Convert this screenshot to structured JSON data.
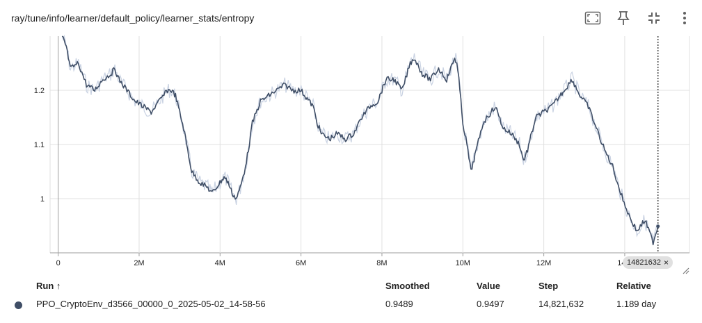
{
  "card": {
    "title": "ray/tune/info/learner/default_policy/learner_stats/entropy"
  },
  "toolbar": {
    "icons": [
      "fullscreen-icon",
      "pin-icon",
      "collapse-icon",
      "more-vert-icon"
    ]
  },
  "chart_data": {
    "type": "line",
    "title": "ray/tune/info/learner/default_policy/learner_stats/entropy",
    "xlabel": "",
    "ylabel": "",
    "xlim": [
      -200000,
      15600000
    ],
    "ylim": [
      0.9,
      1.3
    ],
    "x_ticks": [
      "0",
      "2M",
      "4M",
      "6M",
      "8M",
      "10M",
      "12M",
      "14M"
    ],
    "x_tick_values": [
      0,
      2000000,
      4000000,
      6000000,
      8000000,
      10000000,
      12000000,
      14000000
    ],
    "y_ticks": [
      "1",
      "1.1",
      "1.2"
    ],
    "y_tick_values": [
      1.0,
      1.1,
      1.2
    ],
    "grid": true,
    "series": [
      {
        "name": "PPO_CryptoEnv_d3566_00000_0_2025-05-02_14-58-56",
        "color": "#3f4e66",
        "raw_color": "#c9d2e2",
        "x": [
          100000,
          200000,
          300000,
          500000,
          700000,
          900000,
          1100000,
          1300000,
          1400000,
          1500000,
          1700000,
          1900000,
          2100000,
          2300000,
          2500000,
          2700000,
          2800000,
          2900000,
          3000000,
          3100000,
          3200000,
          3300000,
          3500000,
          3700000,
          3800000,
          3900000,
          4000000,
          4100000,
          4200000,
          4300000,
          4400000,
          4500000,
          4600000,
          4700000,
          4800000,
          5000000,
          5200000,
          5400000,
          5600000,
          5800000,
          6000000,
          6100000,
          6200000,
          6300000,
          6400000,
          6500000,
          6700000,
          6900000,
          7100000,
          7300000,
          7500000,
          7700000,
          7900000,
          8000000,
          8100000,
          8300000,
          8500000,
          8700000,
          8800000,
          9000000,
          9200000,
          9400000,
          9600000,
          9700000,
          9800000,
          9850000,
          9900000,
          10000000,
          10100000,
          10200000,
          10300000,
          10500000,
          10700000,
          10800000,
          11000000,
          11200000,
          11400000,
          11500000,
          11600000,
          11700000,
          11800000,
          12000000,
          12200000,
          12400000,
          12500000,
          12700000,
          12900000,
          13100000,
          13300000,
          13500000,
          13700000,
          13900000,
          14100000,
          14300000,
          14500000,
          14700000,
          14821632
        ],
        "y": [
          1.3,
          1.28,
          1.24,
          1.25,
          1.21,
          1.2,
          1.22,
          1.23,
          1.24,
          1.22,
          1.2,
          1.18,
          1.17,
          1.16,
          1.18,
          1.2,
          1.2,
          1.19,
          1.16,
          1.13,
          1.09,
          1.05,
          1.03,
          1.02,
          1.01,
          1.02,
          1.03,
          1.04,
          1.03,
          1.01,
          1.0,
          1.02,
          1.05,
          1.09,
          1.14,
          1.18,
          1.19,
          1.2,
          1.21,
          1.2,
          1.2,
          1.19,
          1.18,
          1.17,
          1.14,
          1.12,
          1.11,
          1.12,
          1.11,
          1.12,
          1.15,
          1.17,
          1.18,
          1.2,
          1.22,
          1.22,
          1.2,
          1.25,
          1.26,
          1.23,
          1.22,
          1.24,
          1.22,
          1.24,
          1.26,
          1.25,
          1.22,
          1.14,
          1.1,
          1.05,
          1.08,
          1.14,
          1.16,
          1.17,
          1.13,
          1.12,
          1.1,
          1.07,
          1.09,
          1.12,
          1.15,
          1.16,
          1.17,
          1.19,
          1.2,
          1.22,
          1.19,
          1.17,
          1.13,
          1.09,
          1.06,
          1.01,
          0.97,
          0.94,
          0.96,
          0.92,
          0.949
        ]
      }
    ],
    "cursor_step_value": 14821632
  },
  "cursor_chip": {
    "label": "14821632",
    "close": "×"
  },
  "table": {
    "headers": {
      "run": "Run ↑",
      "smoothed": "Smoothed",
      "value": "Value",
      "step": "Step",
      "relative": "Relative"
    },
    "rows": [
      {
        "color": "#3f4e66",
        "run": "PPO_CryptoEnv_d3566_00000_0_2025-05-02_14-58-56",
        "smoothed": "0.9489",
        "value": "0.9497",
        "step": "14,821,632",
        "relative": "1.189 day"
      }
    ]
  }
}
